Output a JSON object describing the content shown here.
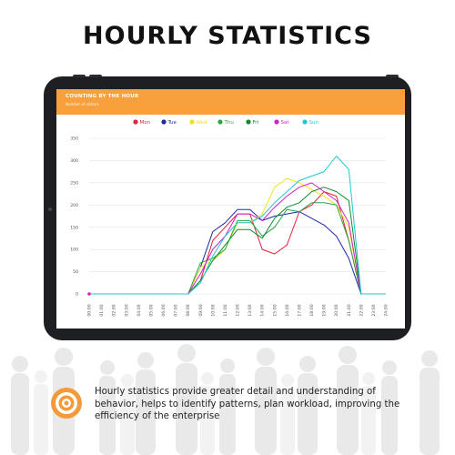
{
  "headline": "HOURLY STATISTICS",
  "app": {
    "title": "COUNTING BY THE HOUR",
    "subtitle": "Number of visitors"
  },
  "description": "Hourly statistics provide greater detail and understanding of behavior, helps to identify patterns, plan workload, improving the efficiency of the enterprise",
  "colors": {
    "accent": "#f7a03c",
    "icon": "#f39a3a"
  },
  "icons": {
    "info": "target-icon"
  },
  "chart_data": {
    "type": "line",
    "title": "",
    "xlabel": "",
    "ylabel": "",
    "ylim": [
      0,
      350
    ],
    "yticks": [
      0,
      50,
      100,
      150,
      200,
      250,
      300,
      350
    ],
    "grid": true,
    "legend_position": "top-center",
    "x": [
      "00:00",
      "01:00",
      "02:00",
      "03:00",
      "04:00",
      "05:00",
      "06:00",
      "07:00",
      "08:00",
      "09:00",
      "10:00",
      "11:00",
      "12:00",
      "13:00",
      "14:00",
      "15:00",
      "16:00",
      "17:00",
      "18:00",
      "19:00",
      "20:00",
      "21:00",
      "22:00",
      "23:00",
      "24:00"
    ],
    "series": [
      {
        "name": "Mon",
        "color": "#e8203a",
        "values": [
          0,
          0,
          0,
          0,
          0,
          0,
          0,
          0,
          0,
          30,
          120,
          150,
          180,
          180,
          100,
          90,
          110,
          185,
          200,
          230,
          220,
          120,
          0,
          0,
          0
        ]
      },
      {
        "name": "Tue",
        "color": "#1c2aa8",
        "values": [
          0,
          0,
          0,
          0,
          0,
          0,
          0,
          0,
          0,
          60,
          140,
          160,
          190,
          190,
          165,
          175,
          180,
          185,
          170,
          155,
          130,
          80,
          0,
          0,
          0
        ]
      },
      {
        "name": "Wed",
        "color": "#f3e21a",
        "values": [
          0,
          0,
          0,
          0,
          0,
          0,
          0,
          0,
          0,
          60,
          75,
          100,
          160,
          160,
          180,
          240,
          260,
          250,
          235,
          220,
          200,
          150,
          0,
          0,
          0
        ]
      },
      {
        "name": "Thu",
        "color": "#27a844",
        "values": [
          0,
          0,
          0,
          0,
          0,
          0,
          0,
          0,
          0,
          70,
          80,
          100,
          165,
          165,
          130,
          150,
          190,
          185,
          205,
          205,
          200,
          120,
          0,
          0,
          0
        ]
      },
      {
        "name": "Fri",
        "color": "#0e8a2c",
        "values": [
          0,
          0,
          0,
          0,
          0,
          0,
          0,
          0,
          0,
          30,
          75,
          110,
          145,
          145,
          125,
          170,
          195,
          205,
          230,
          240,
          230,
          210,
          0,
          0,
          0
        ]
      },
      {
        "name": "Sat",
        "color": "#d11ec9",
        "values": [
          0,
          0,
          0,
          0,
          0,
          0,
          0,
          0,
          0,
          45,
          100,
          130,
          180,
          180,
          165,
          195,
          220,
          240,
          250,
          230,
          210,
          160,
          0,
          0,
          0
        ]
      },
      {
        "name": "Sun",
        "color": "#22c7cf",
        "values": [
          0,
          0,
          0,
          0,
          0,
          0,
          0,
          0,
          0,
          25,
          85,
          130,
          160,
          160,
          175,
          205,
          230,
          255,
          265,
          275,
          310,
          280,
          0,
          0,
          0
        ]
      }
    ]
  }
}
